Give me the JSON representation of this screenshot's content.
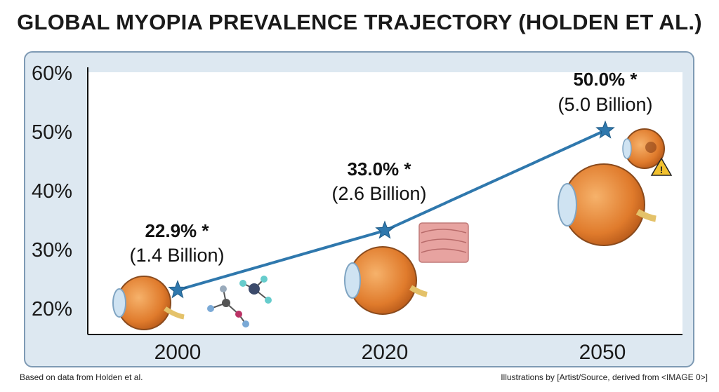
{
  "chart_data": {
    "type": "line",
    "title": "GLOBAL MYOPIA PREVALENCE TRAJECTORY (HOLDEN ET AL.)",
    "x": [
      "2000",
      "2020",
      "2050"
    ],
    "yticks": [
      "60%",
      "50%",
      "40%",
      "30%",
      "20%"
    ],
    "ylim": [
      15,
      60
    ],
    "series": [
      {
        "values": [
          22.9,
          33.0,
          50.0
        ],
        "labels": [
          "22.9% *",
          "33.0% *",
          "50.0% *"
        ],
        "sublabels": [
          "(1.4 Billion)",
          "(2.6 Billion)",
          "(5.0 Billion)"
        ],
        "color": "#2f78ad",
        "marker": "star"
      }
    ],
    "grid": false
  },
  "footer": {
    "left": "Based on data from Holden et al.",
    "right": "Illustrations by [Artist/Source, derived from <IMAGE 0>]"
  },
  "colors": {
    "panel": "#dde8f1",
    "plot": "#ffffff",
    "line": "#2f78ad",
    "eye": "#e9893a"
  }
}
